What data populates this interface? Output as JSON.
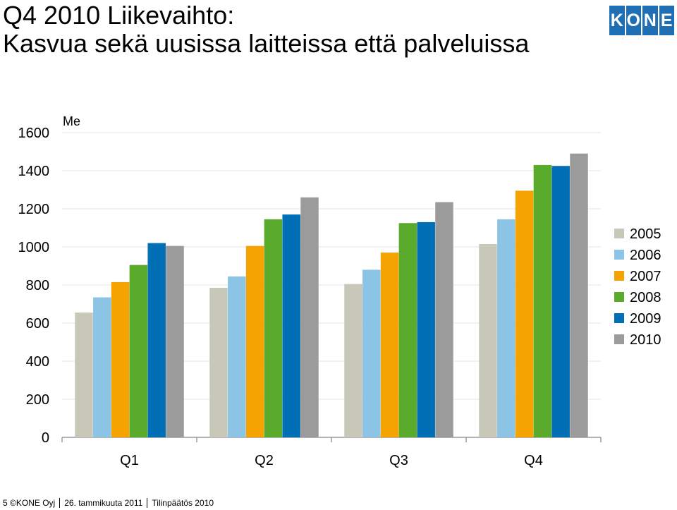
{
  "header": {
    "title_line1": "Q4 2010 Liikevaihto:",
    "title_line2": "Kasvua sekä uusissa laitteissa että palveluissa"
  },
  "logo": {
    "letters": [
      "K",
      "O",
      "N",
      "E"
    ],
    "color": "#1f6fb4"
  },
  "footer": {
    "page": "5 ©KONE Oyj",
    "date": "26. tammikuuta 2011",
    "doc": "Tilinpäätös 2010"
  },
  "chart_data": {
    "type": "bar",
    "ylabel": "Me",
    "ylim": [
      0,
      1600
    ],
    "yticks": [
      0,
      200,
      400,
      600,
      800,
      1000,
      1200,
      1400,
      1600
    ],
    "grid": true,
    "legend_position": "right",
    "categories": [
      "Q1",
      "Q2",
      "Q3",
      "Q4"
    ],
    "series": [
      {
        "name": "2005",
        "color": "#c8c8b8",
        "values": [
          655,
          785,
          805,
          1015
        ]
      },
      {
        "name": "2006",
        "color": "#8cc4e6",
        "values": [
          735,
          845,
          880,
          1145
        ]
      },
      {
        "name": "2007",
        "color": "#f5a300",
        "values": [
          815,
          1005,
          970,
          1295
        ]
      },
      {
        "name": "2008",
        "color": "#5aaa2c",
        "values": [
          905,
          1145,
          1125,
          1430
        ]
      },
      {
        "name": "2009",
        "color": "#006fb6",
        "values": [
          1020,
          1170,
          1130,
          1425
        ]
      },
      {
        "name": "2010",
        "color": "#9b9b9b",
        "values": [
          1005,
          1260,
          1235,
          1490
        ]
      }
    ]
  }
}
